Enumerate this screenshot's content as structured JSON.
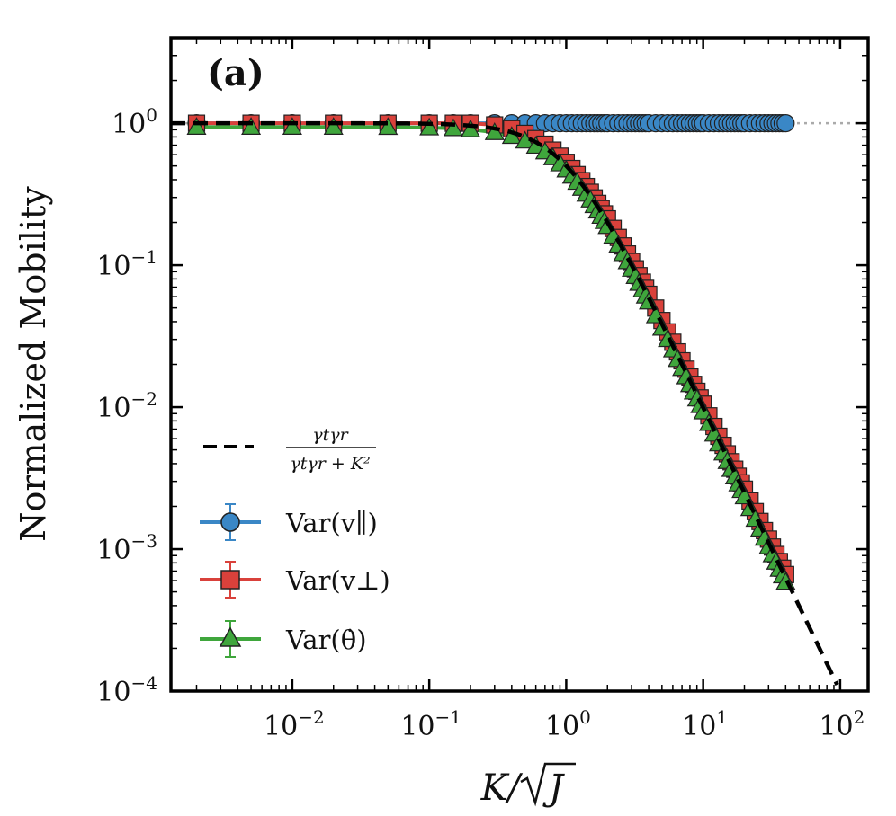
{
  "chart_data": {
    "type": "scatter",
    "panel_label": "(a)",
    "ylabel": "Normalized Mobility",
    "xlabel": {
      "main": "K/",
      "sqrt_arg": "J"
    },
    "xscale": "log",
    "yscale": "log",
    "xlim": [
      0.0013,
      160
    ],
    "ylim": [
      0.0001,
      4
    ],
    "x_ticks": [
      {
        "value": 0.01,
        "base": "10",
        "exp": "−2"
      },
      {
        "value": 0.1,
        "base": "10",
        "exp": "−1"
      },
      {
        "value": 1,
        "base": "10",
        "exp": "0"
      },
      {
        "value": 10,
        "base": "10",
        "exp": "1"
      },
      {
        "value": 100,
        "base": "10",
        "exp": "2"
      }
    ],
    "y_ticks": [
      {
        "value": 0.0001,
        "base": "10",
        "exp": "−4"
      },
      {
        "value": 0.001,
        "base": "10",
        "exp": "−3"
      },
      {
        "value": 0.01,
        "base": "10",
        "exp": "−2"
      },
      {
        "value": 0.1,
        "base": "10",
        "exp": "−1"
      },
      {
        "value": 1,
        "base": "10",
        "exp": "0"
      }
    ],
    "reference_line": {
      "y": 1,
      "style": "dotted",
      "color": "#aaaaaa"
    },
    "theory": {
      "name": "γtγr/(γtγr+K²)",
      "label_numerator": "γtγr",
      "label_denominator": "γtγr + K²",
      "formula": "1/(1+x^2)",
      "x_range": [
        0.0013,
        95
      ],
      "color": "#000000",
      "style": "dashed"
    },
    "series": [
      {
        "name": "Var(v∥)",
        "legend_text": "Var(v∥)",
        "marker": "circle",
        "color": "#3a87c6",
        "model": "constant",
        "x": [
          0.002,
          0.005,
          0.01,
          0.02,
          0.05,
          0.1,
          0.15,
          0.2,
          0.3,
          0.4,
          0.5,
          0.6,
          0.7,
          0.8,
          0.9,
          1.0,
          1.1,
          1.2,
          1.3,
          1.4,
          1.5,
          1.6,
          1.7,
          1.8,
          1.9,
          2.0,
          2.2,
          2.4,
          2.6,
          2.8,
          3.0,
          3.2,
          3.4,
          3.6,
          3.8,
          4.0,
          4.5,
          5.0,
          5.5,
          6.0,
          6.5,
          7.0,
          7.5,
          8.0,
          8.5,
          9.0,
          9.5,
          10,
          11,
          12,
          13,
          14,
          15,
          16,
          17,
          18,
          19,
          20,
          22,
          24,
          26,
          28,
          30,
          32,
          34,
          36,
          38,
          40
        ],
        "values": "all ≈ 1.0"
      },
      {
        "name": "Var(v⊥)",
        "legend_text": "Var(v⊥)",
        "marker": "square",
        "color": "#d9413b",
        "model": "1/(1+x^2)",
        "x": [
          0.002,
          0.005,
          0.01,
          0.02,
          0.05,
          0.1,
          0.15,
          0.2,
          0.3,
          0.4,
          0.5,
          0.6,
          0.7,
          0.8,
          0.9,
          1.0,
          1.1,
          1.2,
          1.3,
          1.4,
          1.5,
          1.6,
          1.7,
          1.8,
          1.9,
          2.0,
          2.2,
          2.4,
          2.6,
          2.8,
          3.0,
          3.2,
          3.4,
          3.6,
          3.8,
          4.0,
          4.5,
          5.0,
          5.5,
          6.0,
          6.5,
          7.0,
          7.5,
          8.0,
          8.5,
          9.0,
          9.5,
          10,
          11,
          12,
          13,
          14,
          15,
          16,
          17,
          18,
          19,
          20,
          22,
          24,
          26,
          28,
          30,
          32,
          34,
          36,
          38,
          40
        ],
        "y_offset_factor": 1.06
      },
      {
        "name": "Var(θ̇)",
        "legend_text": "Var(θ̇)",
        "marker": "triangle",
        "color": "#3fa63c",
        "model": "1/(1+x^2)",
        "x": [
          0.002,
          0.005,
          0.01,
          0.02,
          0.05,
          0.1,
          0.15,
          0.2,
          0.3,
          0.4,
          0.5,
          0.6,
          0.7,
          0.8,
          0.9,
          1.0,
          1.1,
          1.2,
          1.3,
          1.4,
          1.5,
          1.6,
          1.7,
          1.8,
          1.9,
          2.0,
          2.2,
          2.4,
          2.6,
          2.8,
          3.0,
          3.2,
          3.4,
          3.6,
          3.8,
          4.0,
          4.5,
          5.0,
          5.5,
          6.0,
          6.5,
          7.0,
          7.5,
          8.0,
          8.5,
          9.0,
          9.5,
          10,
          11,
          12,
          13,
          14,
          15,
          16,
          17,
          18,
          19,
          20,
          22,
          24,
          26,
          28,
          30,
          32,
          34,
          36,
          38,
          40
        ],
        "y_offset_factor": 0.94
      }
    ],
    "legend_position": "lower-left"
  }
}
